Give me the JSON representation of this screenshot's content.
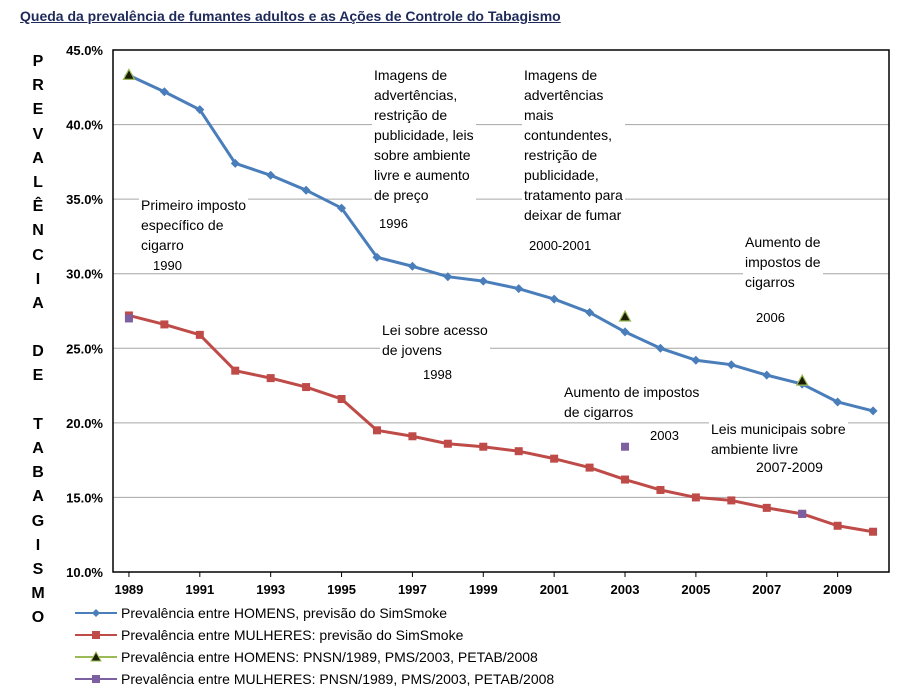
{
  "chart_data": {
    "type": "line",
    "title": "Queda da prevalência de fumantes adultos e as Ações de Controle do Tabagismo",
    "ylabel": "PREVALÊNCIA DE TABAGISMO",
    "ylim": [
      10,
      45
    ],
    "y_ticks": [
      "10.0%",
      "15.0%",
      "20.0%",
      "25.0%",
      "30.0%",
      "35.0%",
      "40.0%",
      "45.0%"
    ],
    "x_ticks": [
      "1989",
      "1991",
      "1993",
      "1995",
      "1997",
      "1999",
      "2001",
      "2003",
      "2005",
      "2007",
      "2009"
    ],
    "x": [
      1989,
      1990,
      1991,
      1992,
      1993,
      1994,
      1995,
      1996,
      1997,
      1998,
      1999,
      2000,
      2001,
      2002,
      2003,
      2004,
      2005,
      2006,
      2007,
      2008,
      2009,
      2010
    ],
    "grid": true,
    "legend_position": "bottom",
    "colors": {
      "men": "#4a7ebb",
      "women": "#be4b48",
      "obs_men_fill": "#1c1c00",
      "obs_men_edge": "#9bbb59",
      "obs_women": "#7d60a0"
    },
    "series": [
      {
        "name": "Prevalência entre HOMENS,  previsão do SimSmoke",
        "marker": "diamond",
        "values": [
          43.3,
          42.2,
          41.0,
          37.4,
          36.6,
          35.6,
          34.4,
          31.1,
          30.5,
          29.8,
          29.5,
          29.0,
          28.3,
          27.4,
          26.1,
          25.0,
          24.2,
          23.9,
          23.2,
          22.6,
          21.4,
          20.8
        ]
      },
      {
        "name": "Prevalência entre MULHERES: previsão do SimSmoke",
        "marker": "square",
        "values": [
          27.2,
          26.6,
          25.9,
          23.5,
          23.0,
          22.4,
          21.6,
          19.5,
          19.1,
          18.6,
          18.4,
          18.1,
          17.6,
          17.0,
          16.2,
          15.5,
          15.0,
          14.8,
          14.3,
          13.9,
          13.1,
          12.7
        ]
      },
      {
        "name": "Prevalência entre HOMENS: PNSN/1989, PMS/2003,  PETAB/2008",
        "marker": "triangle",
        "points": [
          [
            1989,
            43.3
          ],
          [
            2003,
            27.1
          ],
          [
            2008,
            22.8
          ]
        ]
      },
      {
        "name": "Prevalência entre MULHERES: PNSN/1989, PMS/2003, PETAB/2008",
        "marker": "square",
        "points": [
          [
            1989,
            27.0
          ],
          [
            2003,
            18.4
          ],
          [
            2008,
            13.9
          ]
        ]
      }
    ],
    "annotations": [
      {
        "text": "Primeiro imposto\nespecífico de\ncigarro",
        "year": "1990"
      },
      {
        "text": "Imagens de\nadvertências,\nrestrição de\npublicidade, leis\nsobre ambiente\nlivre e aumento\nde preço",
        "year": "1996"
      },
      {
        "text": "Imagens de\nadvertências\nmais\ncontundentes,\nrestrição de\npublicidade,\ntratamento para\ndeixar de fumar",
        "year": "2000-2001"
      },
      {
        "text": "Aumento de\nimpostos de\ncigarros",
        "year": "2006"
      },
      {
        "text": "Lei sobre acesso\nde jovens",
        "year": "1998"
      },
      {
        "text": "Aumento de impostos\nde cigarros",
        "year": "2003"
      },
      {
        "text": "Leis municipais sobre\nambiente livre",
        "year": "2007-2009"
      }
    ]
  }
}
